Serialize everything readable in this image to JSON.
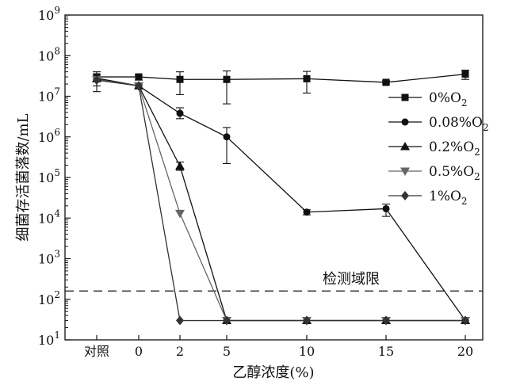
{
  "chart_data": {
    "type": "line",
    "ylabel": "细菌存活菌落数/mL",
    "xlabel": "乙醇浓度(%)",
    "y_scale": "log",
    "ylim": [
      10,
      1000000000
    ],
    "x_tick_labels": [
      "对照",
      "0",
      "2",
      "5",
      "10",
      "15",
      "20"
    ],
    "y_tick_labels": [
      {
        "base": "10",
        "exp": "1"
      },
      {
        "base": "10",
        "exp": "2"
      },
      {
        "base": "10",
        "exp": "3"
      },
      {
        "base": "10",
        "exp": "4"
      },
      {
        "base": "10",
        "exp": "5"
      },
      {
        "base": "10",
        "exp": "6"
      },
      {
        "base": "10",
        "exp": "7"
      },
      {
        "base": "10",
        "exp": "8"
      },
      {
        "base": "10",
        "exp": "9"
      }
    ],
    "x_points": [
      "对照",
      "0",
      "2",
      "5",
      "10",
      "15",
      "20"
    ],
    "series": [
      {
        "name": "0%O2",
        "label_main": "0%O",
        "label_sub": "2",
        "marker": "square",
        "color": "#111111",
        "values": [
          30000000,
          30000000,
          26000000,
          26000000,
          27000000,
          22000000,
          35000000
        ],
        "err_low": [
          18000000,
          25000000,
          11000000,
          6500000,
          12000000,
          20000000,
          26000000
        ],
        "err_high": [
          40000000,
          33000000,
          40000000,
          42000000,
          41000000,
          24000000,
          44000000
        ]
      },
      {
        "name": "0.08%O2",
        "label_main": "0.08%O",
        "label_sub": "2",
        "marker": "circle",
        "color": "#111111",
        "values": [
          28000000,
          18000000,
          3800000,
          1000000,
          14000,
          17000,
          30
        ],
        "err_low": [
          13000000,
          16000000,
          2800000,
          220000,
          12000,
          11000,
          null
        ],
        "err_high": [
          35000000,
          20000000,
          5200000,
          1700000,
          16000,
          22000,
          null
        ]
      },
      {
        "name": "0.2%O2",
        "label_main": "0.2%O",
        "label_sub": "2",
        "marker": "triangle-up",
        "color": "#111111",
        "values": [
          27000000,
          18000000,
          190000,
          30,
          30,
          30,
          30
        ],
        "err_low": [
          null,
          null,
          150000,
          null,
          null,
          null,
          null
        ],
        "err_high": [
          null,
          null,
          240000,
          null,
          null,
          null,
          null
        ]
      },
      {
        "name": "0.5%O2",
        "label_main": "0.5%O",
        "label_sub": "2",
        "marker": "triangle-down",
        "color": "#666666",
        "values": [
          26000000,
          18000000,
          13000,
          30,
          30,
          30,
          30
        ],
        "err_low": [
          null,
          null,
          null,
          null,
          null,
          null,
          null
        ],
        "err_high": [
          null,
          null,
          null,
          null,
          null,
          null,
          null
        ]
      },
      {
        "name": "1%O2",
        "label_main": "1%O",
        "label_sub": "2",
        "marker": "diamond",
        "color": "#333333",
        "values": [
          25000000,
          18000000,
          30,
          30,
          30,
          30,
          30
        ],
        "err_low": [
          null,
          null,
          null,
          null,
          null,
          null,
          null
        ],
        "err_high": [
          null,
          null,
          null,
          null,
          null,
          null,
          null
        ]
      }
    ],
    "reference_line": {
      "label": "检测域限",
      "value": 160
    },
    "legend_position": "right",
    "grid": false
  }
}
